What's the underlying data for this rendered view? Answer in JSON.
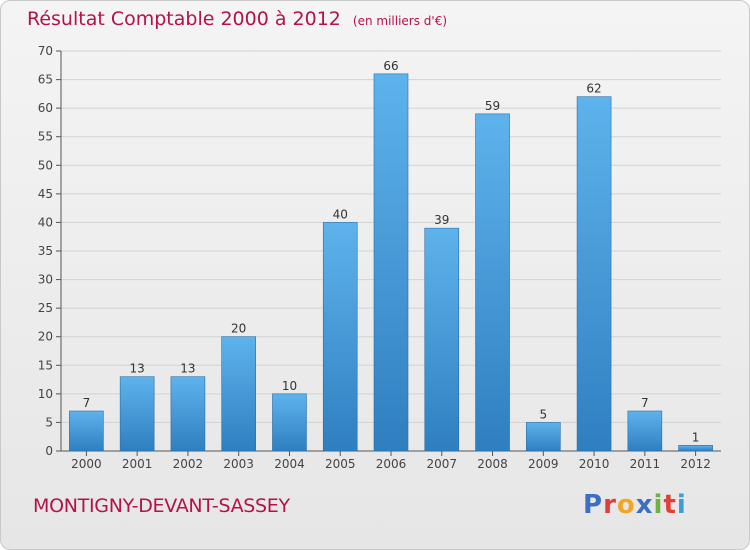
{
  "header": {
    "title": "Résultat Comptable 2000 à 2012",
    "subtitle": "(en milliers d'€)"
  },
  "commune": "MONTIGNY-DEVANT-SASSEY",
  "logo": {
    "text": "Proxiti",
    "letters": [
      "P",
      "r",
      "o",
      "x",
      "i",
      "t",
      "i"
    ]
  },
  "colors": {
    "bar_top": "#5eb3ec",
    "bar_bottom": "#2f7fc0",
    "text_accent": "#b3124a",
    "axis": "#555555"
  },
  "chart_data": {
    "type": "bar",
    "categories": [
      "2000",
      "2001",
      "2002",
      "2003",
      "2004",
      "2005",
      "2006",
      "2007",
      "2008",
      "2009",
      "2010",
      "2011",
      "2012"
    ],
    "values": [
      7,
      13,
      13,
      20,
      10,
      40,
      66,
      39,
      59,
      5,
      62,
      7,
      1
    ],
    "data_labels": [
      "7",
      "13",
      "13",
      "20",
      "10",
      "40",
      "66",
      "39",
      "59",
      "5",
      "62",
      "7",
      "1"
    ],
    "yticks": [
      "0",
      "5",
      "10",
      "15",
      "20",
      "25",
      "30",
      "35",
      "40",
      "45",
      "50",
      "55",
      "60",
      "65",
      "70"
    ],
    "ylim": [
      0,
      70
    ],
    "grid": true
  }
}
